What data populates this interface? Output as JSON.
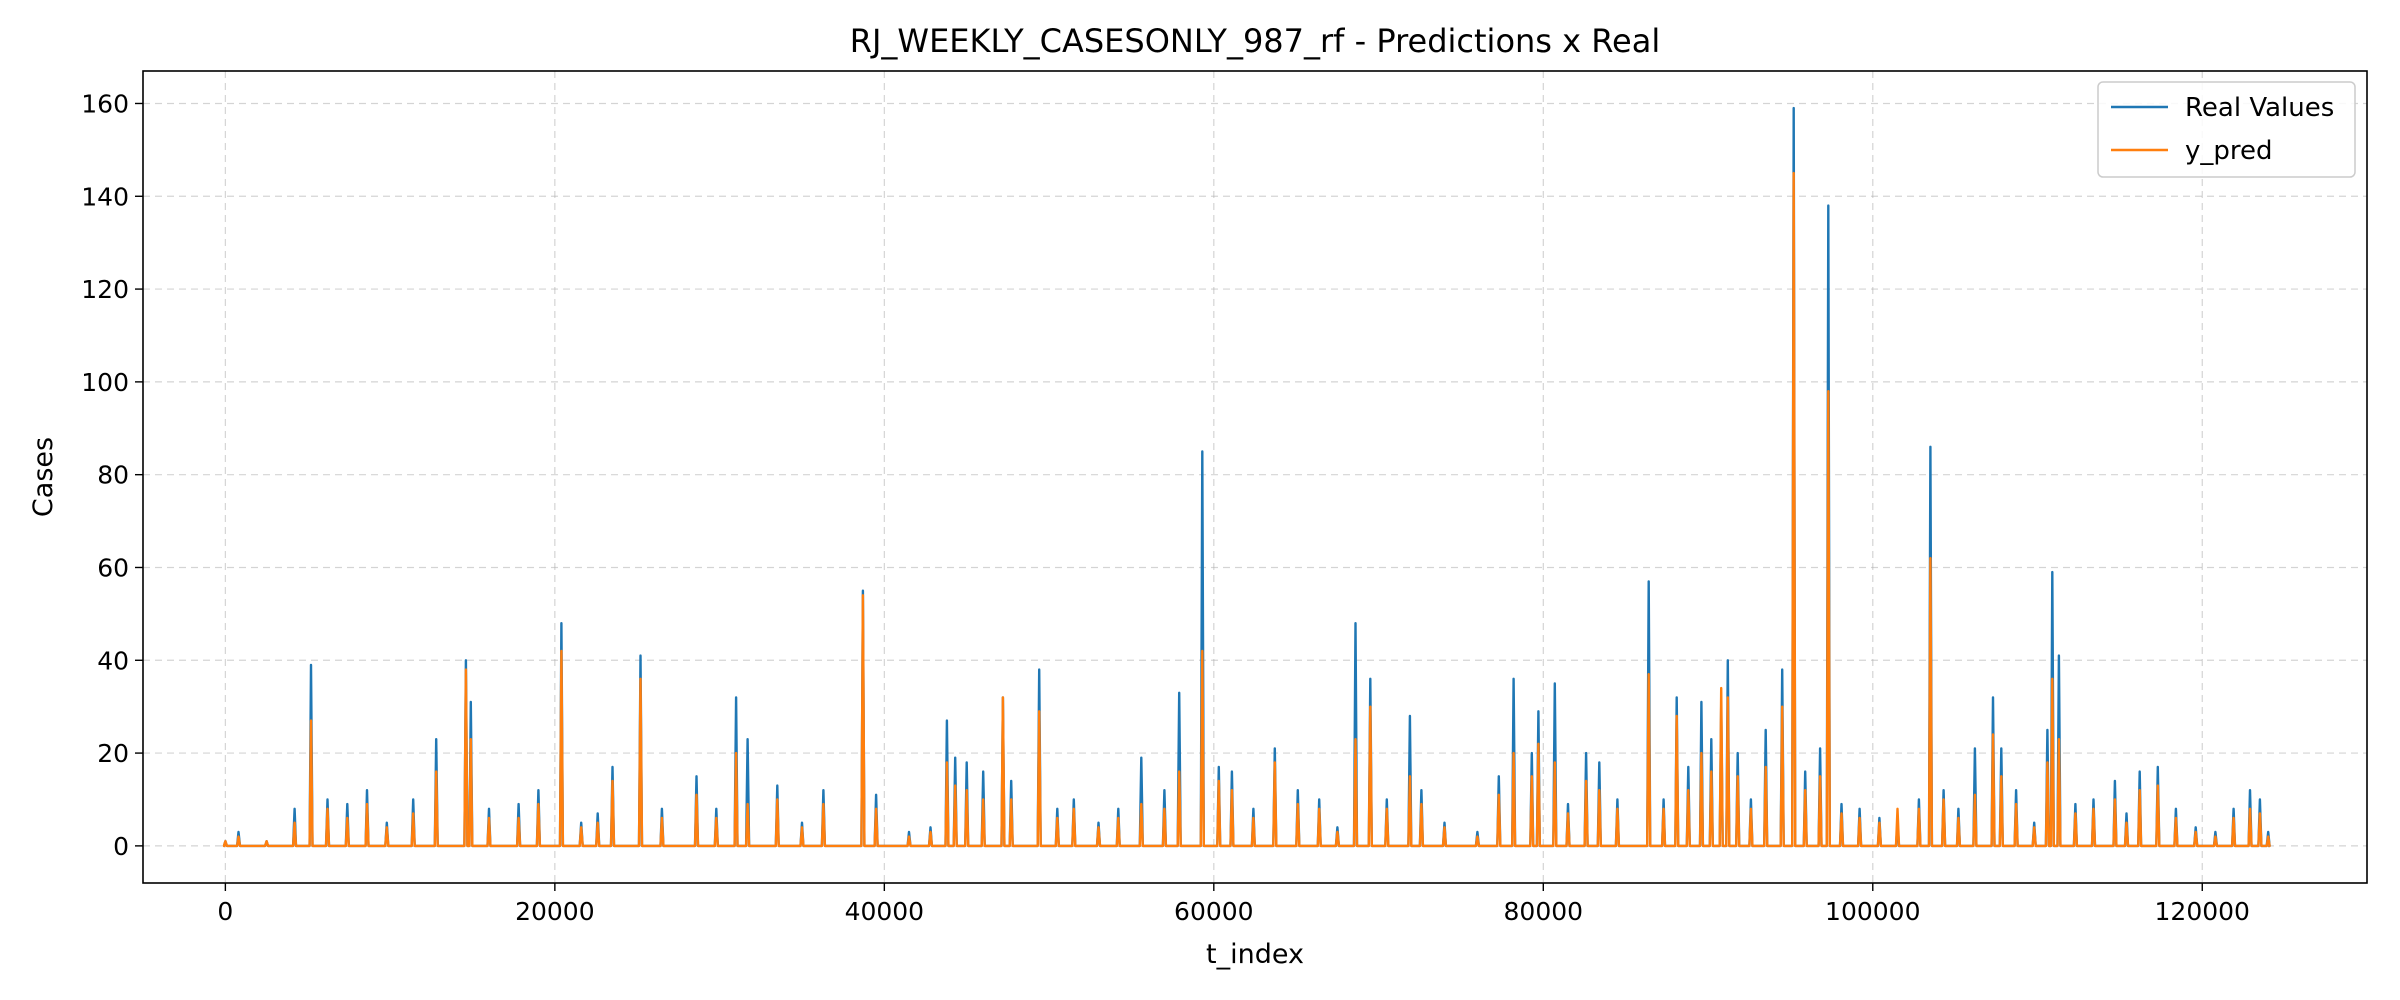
{
  "chart_data": {
    "type": "line",
    "title": "RJ_WEEKLY_CASESONLY_987_rf - Predictions x Real",
    "xlabel": "t_index",
    "ylabel": "Cases",
    "xlim": [
      -5000,
      130000
    ],
    "ylim": [
      -8,
      167
    ],
    "xticks": [
      0,
      20000,
      40000,
      60000,
      80000,
      100000,
      120000
    ],
    "xtick_labels": [
      "0",
      "20000",
      "40000",
      "60000",
      "80000",
      "100000",
      "120000"
    ],
    "yticks": [
      0,
      20,
      40,
      60,
      80,
      100,
      120,
      140,
      160
    ],
    "ytick_labels": [
      "0",
      "20",
      "40",
      "60",
      "80",
      "100",
      "120",
      "140",
      "160"
    ],
    "grid": true,
    "legend_position": "upper right",
    "series": [
      {
        "name": "Real Values",
        "color": "#1f77b4",
        "spikes": [
          [
            0,
            1
          ],
          [
            800,
            3
          ],
          [
            2500,
            1
          ],
          [
            4200,
            8
          ],
          [
            5200,
            39
          ],
          [
            6200,
            10
          ],
          [
            7400,
            9
          ],
          [
            8600,
            12
          ],
          [
            9800,
            5
          ],
          [
            11400,
            10
          ],
          [
            12800,
            23
          ],
          [
            14600,
            40
          ],
          [
            14900,
            31
          ],
          [
            16000,
            8
          ],
          [
            17800,
            9
          ],
          [
            19000,
            12
          ],
          [
            20400,
            48
          ],
          [
            21600,
            5
          ],
          [
            22600,
            7
          ],
          [
            23500,
            17
          ],
          [
            25200,
            41
          ],
          [
            26500,
            8
          ],
          [
            28600,
            15
          ],
          [
            29800,
            8
          ],
          [
            31000,
            32
          ],
          [
            31700,
            23
          ],
          [
            33500,
            13
          ],
          [
            35000,
            5
          ],
          [
            36300,
            12
          ],
          [
            38700,
            55
          ],
          [
            39500,
            11
          ],
          [
            41500,
            3
          ],
          [
            42800,
            4
          ],
          [
            43800,
            27
          ],
          [
            44300,
            19
          ],
          [
            45000,
            18
          ],
          [
            46000,
            16
          ],
          [
            47200,
            32
          ],
          [
            47700,
            14
          ],
          [
            49400,
            38
          ],
          [
            50500,
            8
          ],
          [
            51500,
            10
          ],
          [
            53000,
            5
          ],
          [
            54200,
            8
          ],
          [
            55600,
            19
          ],
          [
            57000,
            12
          ],
          [
            57900,
            33
          ],
          [
            59300,
            85
          ],
          [
            60300,
            17
          ],
          [
            61100,
            16
          ],
          [
            62400,
            8
          ],
          [
            63700,
            21
          ],
          [
            65100,
            12
          ],
          [
            66400,
            10
          ],
          [
            67500,
            4
          ],
          [
            68600,
            48
          ],
          [
            69500,
            36
          ],
          [
            70500,
            10
          ],
          [
            71900,
            28
          ],
          [
            72600,
            12
          ],
          [
            74000,
            5
          ],
          [
            76000,
            3
          ],
          [
            77300,
            15
          ],
          [
            78200,
            36
          ],
          [
            79300,
            20
          ],
          [
            79700,
            29
          ],
          [
            80700,
            35
          ],
          [
            81500,
            9
          ],
          [
            82600,
            20
          ],
          [
            83400,
            18
          ],
          [
            84500,
            10
          ],
          [
            86400,
            57
          ],
          [
            87300,
            10
          ],
          [
            88100,
            32
          ],
          [
            88800,
            17
          ],
          [
            89600,
            31
          ],
          [
            90200,
            23
          ],
          [
            90800,
            30
          ],
          [
            91200,
            40
          ],
          [
            91800,
            20
          ],
          [
            92600,
            10
          ],
          [
            93500,
            25
          ],
          [
            94500,
            38
          ],
          [
            95200,
            159
          ],
          [
            95900,
            16
          ],
          [
            96800,
            21
          ],
          [
            97300,
            138
          ],
          [
            98100,
            9
          ],
          [
            99200,
            8
          ],
          [
            100400,
            6
          ],
          [
            101500,
            5
          ],
          [
            102800,
            10
          ],
          [
            103500,
            86
          ],
          [
            104300,
            12
          ],
          [
            105200,
            8
          ],
          [
            106200,
            21
          ],
          [
            107300,
            32
          ],
          [
            107800,
            21
          ],
          [
            108700,
            12
          ],
          [
            109800,
            5
          ],
          [
            110600,
            25
          ],
          [
            110900,
            59
          ],
          [
            111300,
            41
          ],
          [
            112300,
            9
          ],
          [
            113400,
            10
          ],
          [
            114700,
            14
          ],
          [
            115400,
            7
          ],
          [
            116200,
            16
          ],
          [
            117300,
            17
          ],
          [
            118400,
            8
          ],
          [
            119600,
            4
          ],
          [
            120800,
            3
          ],
          [
            121900,
            8
          ],
          [
            122900,
            12
          ],
          [
            123500,
            10
          ],
          [
            124000,
            3
          ]
        ]
      },
      {
        "name": "y_pred",
        "color": "#ff7f0e",
        "spikes": [
          [
            0,
            1
          ],
          [
            800,
            2
          ],
          [
            2500,
            1
          ],
          [
            4200,
            5
          ],
          [
            5200,
            27
          ],
          [
            6200,
            8
          ],
          [
            7400,
            6
          ],
          [
            8600,
            9
          ],
          [
            9800,
            4
          ],
          [
            11400,
            7
          ],
          [
            12800,
            16
          ],
          [
            14600,
            38
          ],
          [
            14900,
            23
          ],
          [
            16000,
            6
          ],
          [
            17800,
            6
          ],
          [
            19000,
            9
          ],
          [
            20400,
            42
          ],
          [
            21600,
            4
          ],
          [
            22600,
            5
          ],
          [
            23500,
            14
          ],
          [
            25200,
            36
          ],
          [
            26500,
            6
          ],
          [
            28600,
            11
          ],
          [
            29800,
            6
          ],
          [
            31000,
            20
          ],
          [
            31700,
            9
          ],
          [
            33500,
            10
          ],
          [
            35000,
            4
          ],
          [
            36300,
            9
          ],
          [
            38700,
            54
          ],
          [
            39500,
            8
          ],
          [
            41500,
            2
          ],
          [
            42800,
            3
          ],
          [
            43800,
            18
          ],
          [
            44300,
            13
          ],
          [
            45000,
            12
          ],
          [
            46000,
            10
          ],
          [
            47200,
            32
          ],
          [
            47700,
            10
          ],
          [
            49400,
            29
          ],
          [
            50500,
            6
          ],
          [
            51500,
            8
          ],
          [
            53000,
            4
          ],
          [
            54200,
            6
          ],
          [
            55600,
            9
          ],
          [
            57000,
            8
          ],
          [
            57900,
            16
          ],
          [
            59300,
            42
          ],
          [
            60300,
            14
          ],
          [
            61100,
            12
          ],
          [
            62400,
            6
          ],
          [
            63700,
            18
          ],
          [
            65100,
            9
          ],
          [
            66400,
            8
          ],
          [
            67500,
            3
          ],
          [
            68600,
            23
          ],
          [
            69500,
            30
          ],
          [
            70500,
            8
          ],
          [
            71900,
            15
          ],
          [
            72600,
            9
          ],
          [
            74000,
            4
          ],
          [
            76000,
            2
          ],
          [
            77300,
            11
          ],
          [
            78200,
            20
          ],
          [
            79300,
            15
          ],
          [
            79700,
            22
          ],
          [
            80700,
            18
          ],
          [
            81500,
            7
          ],
          [
            82600,
            14
          ],
          [
            83400,
            12
          ],
          [
            84500,
            8
          ],
          [
            86400,
            37
          ],
          [
            87300,
            8
          ],
          [
            88100,
            28
          ],
          [
            88800,
            12
          ],
          [
            89600,
            20
          ],
          [
            90200,
            16
          ],
          [
            90800,
            34
          ],
          [
            91200,
            32
          ],
          [
            91800,
            15
          ],
          [
            92600,
            8
          ],
          [
            93500,
            17
          ],
          [
            94500,
            30
          ],
          [
            95200,
            145
          ],
          [
            95900,
            12
          ],
          [
            96800,
            15
          ],
          [
            97300,
            98
          ],
          [
            98100,
            7
          ],
          [
            99200,
            6
          ],
          [
            100400,
            5
          ],
          [
            101500,
            8
          ],
          [
            102800,
            8
          ],
          [
            103500,
            62
          ],
          [
            104300,
            10
          ],
          [
            105200,
            6
          ],
          [
            106200,
            11
          ],
          [
            107300,
            24
          ],
          [
            107800,
            15
          ],
          [
            108700,
            9
          ],
          [
            109800,
            4
          ],
          [
            110600,
            18
          ],
          [
            110900,
            36
          ],
          [
            111300,
            23
          ],
          [
            112300,
            7
          ],
          [
            113400,
            8
          ],
          [
            114700,
            10
          ],
          [
            115400,
            5
          ],
          [
            116200,
            12
          ],
          [
            117300,
            13
          ],
          [
            118400,
            6
          ],
          [
            119600,
            3
          ],
          [
            120800,
            2
          ],
          [
            121900,
            6
          ],
          [
            122900,
            8
          ],
          [
            123500,
            7
          ],
          [
            124000,
            2
          ]
        ]
      }
    ]
  }
}
